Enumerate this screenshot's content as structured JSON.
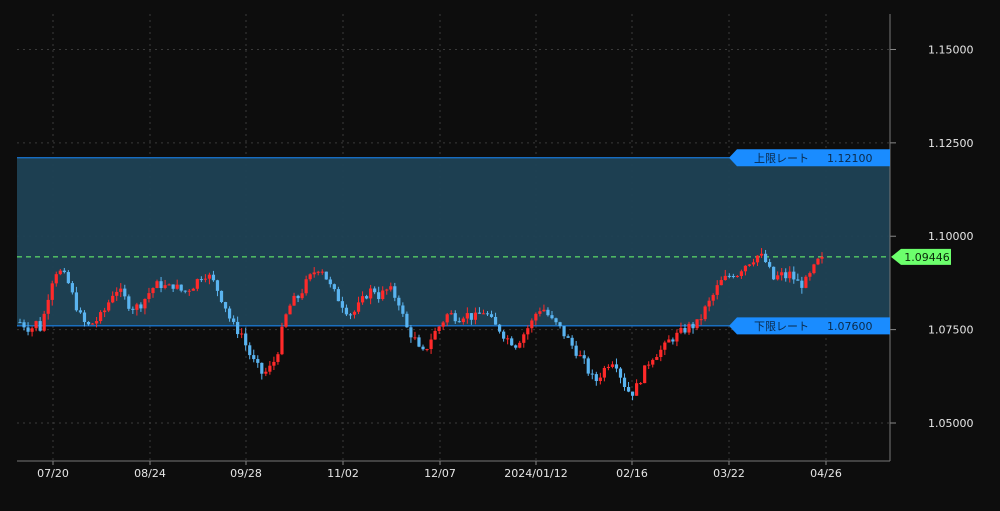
{
  "chart_data": {
    "type": "candlestick",
    "instrument": "",
    "ylim": [
      1.0425,
      1.1595
    ],
    "y_ticks": [
      "1.05000",
      "1.07500",
      "1.10000",
      "1.12500",
      "1.15000"
    ],
    "x_ticks": [
      "07/20",
      "08/24",
      "09/28",
      "11/02",
      "12/07",
      "2024/01/12",
      "02/16",
      "03/22",
      "04/26"
    ],
    "grid": true,
    "colors": {
      "background": "#0d0d0d",
      "grid": "#3a3a3a",
      "up_candle": "#ff2a2a",
      "down_candle": "#5ab4f0",
      "band_fill": "#1f4255",
      "band_line": "#1a8cff",
      "tag_blue": "#1a8cff",
      "current_price_line": "#6cff6c"
    },
    "band": {
      "upper": {
        "label": "上限レート",
        "value_text": "1.12100",
        "value": 1.121
      },
      "lower": {
        "label": "下限レート",
        "value_text": "1.07600",
        "value": 1.076
      }
    },
    "current_price": {
      "value_text": "1.09446",
      "value": 1.09446
    },
    "price_path": [
      [
        0,
        1.077
      ],
      [
        5,
        1.076
      ],
      [
        10,
        1.075
      ],
      [
        15,
        1.077
      ],
      [
        20,
        1.075
      ],
      [
        25,
        1.082
      ],
      [
        30,
        1.088
      ],
      [
        35,
        1.091
      ],
      [
        40,
        1.09
      ],
      [
        45,
        1.088
      ],
      [
        50,
        1.084
      ],
      [
        55,
        1.08
      ],
      [
        60,
        1.077
      ],
      [
        65,
        1.076
      ],
      [
        70,
        1.077
      ],
      [
        75,
        1.078
      ],
      [
        80,
        1.08
      ],
      [
        85,
        1.083
      ],
      [
        90,
        1.086
      ],
      [
        95,
        1.085
      ],
      [
        100,
        1.083
      ],
      [
        105,
        1.081
      ],
      [
        110,
        1.081
      ],
      [
        115,
        1.082
      ],
      [
        120,
        1.084
      ],
      [
        125,
        1.086
      ],
      [
        130,
        1.087
      ],
      [
        135,
        1.087
      ],
      [
        140,
        1.086
      ],
      [
        145,
        1.087
      ],
      [
        150,
        1.086
      ],
      [
        155,
        1.085
      ],
      [
        160,
        1.086
      ],
      [
        165,
        1.087
      ],
      [
        170,
        1.089
      ],
      [
        175,
        1.09
      ],
      [
        180,
        1.089
      ],
      [
        185,
        1.087
      ],
      [
        190,
        1.084
      ],
      [
        195,
        1.081
      ],
      [
        200,
        1.077
      ],
      [
        205,
        1.075
      ],
      [
        210,
        1.074
      ],
      [
        215,
        1.07
      ],
      [
        220,
        1.067
      ],
      [
        225,
        1.065
      ],
      [
        230,
        1.063
      ],
      [
        235,
        1.064
      ],
      [
        240,
        1.066
      ],
      [
        245,
        1.07
      ],
      [
        250,
        1.077
      ],
      [
        255,
        1.081
      ],
      [
        260,
        1.083
      ],
      [
        265,
        1.084
      ],
      [
        270,
        1.087
      ],
      [
        275,
        1.089
      ],
      [
        280,
        1.091
      ],
      [
        285,
        1.092
      ],
      [
        290,
        1.089
      ],
      [
        295,
        1.086
      ],
      [
        300,
        1.084
      ],
      [
        305,
        1.082
      ],
      [
        310,
        1.08
      ],
      [
        315,
        1.079
      ],
      [
        320,
        1.081
      ],
      [
        325,
        1.083
      ],
      [
        330,
        1.085
      ],
      [
        335,
        1.086
      ],
      [
        340,
        1.084
      ],
      [
        345,
        1.085
      ],
      [
        350,
        1.086
      ],
      [
        355,
        1.084
      ],
      [
        360,
        1.082
      ],
      [
        365,
        1.076
      ],
      [
        370,
        1.074
      ],
      [
        375,
        1.072
      ],
      [
        380,
        1.068
      ],
      [
        385,
        1.07
      ],
      [
        390,
        1.073
      ],
      [
        395,
        1.075
      ],
      [
        400,
        1.077
      ],
      [
        405,
        1.079
      ],
      [
        410,
        1.079
      ],
      [
        415,
        1.078
      ],
      [
        420,
        1.079
      ],
      [
        425,
        1.079
      ],
      [
        430,
        1.078
      ],
      [
        435,
        1.079
      ],
      [
        440,
        1.08
      ],
      [
        445,
        1.078
      ],
      [
        450,
        1.076
      ],
      [
        455,
        1.075
      ],
      [
        460,
        1.073
      ],
      [
        465,
        1.072
      ],
      [
        470,
        1.071
      ],
      [
        475,
        1.073
      ],
      [
        480,
        1.075
      ],
      [
        485,
        1.077
      ],
      [
        490,
        1.08
      ],
      [
        495,
        1.081
      ],
      [
        500,
        1.079
      ],
      [
        505,
        1.077
      ],
      [
        510,
        1.076
      ],
      [
        515,
        1.074
      ],
      [
        520,
        1.072
      ],
      [
        525,
        1.07
      ],
      [
        530,
        1.068
      ],
      [
        535,
        1.066
      ],
      [
        540,
        1.063
      ],
      [
        545,
        1.061
      ],
      [
        550,
        1.063
      ],
      [
        555,
        1.065
      ],
      [
        560,
        1.067
      ],
      [
        565,
        1.066
      ],
      [
        570,
        1.062
      ],
      [
        575,
        1.059
      ],
      [
        580,
        1.058
      ],
      [
        585,
        1.06
      ],
      [
        590,
        1.063
      ],
      [
        595,
        1.066
      ],
      [
        600,
        1.068
      ],
      [
        605,
        1.069
      ],
      [
        610,
        1.07
      ],
      [
        615,
        1.072
      ],
      [
        620,
        1.073
      ],
      [
        625,
        1.074
      ],
      [
        630,
        1.075
      ],
      [
        635,
        1.076
      ],
      [
        640,
        1.076
      ],
      [
        645,
        1.078
      ],
      [
        650,
        1.081
      ],
      [
        655,
        1.083
      ],
      [
        660,
        1.086
      ],
      [
        665,
        1.088
      ],
      [
        670,
        1.089
      ],
      [
        675,
        1.09
      ],
      [
        680,
        1.09
      ],
      [
        685,
        1.092
      ],
      [
        690,
        1.093
      ],
      [
        695,
        1.094
      ],
      [
        700,
        1.095
      ],
      [
        705,
        1.094
      ],
      [
        710,
        1.091
      ],
      [
        715,
        1.088
      ],
      [
        720,
        1.09
      ],
      [
        725,
        1.089
      ],
      [
        730,
        1.09
      ],
      [
        735,
        1.088
      ],
      [
        740,
        1.087
      ],
      [
        745,
        1.088
      ],
      [
        750,
        1.09
      ],
      [
        755,
        1.093
      ],
      [
        760,
        1.094
      ]
    ]
  }
}
